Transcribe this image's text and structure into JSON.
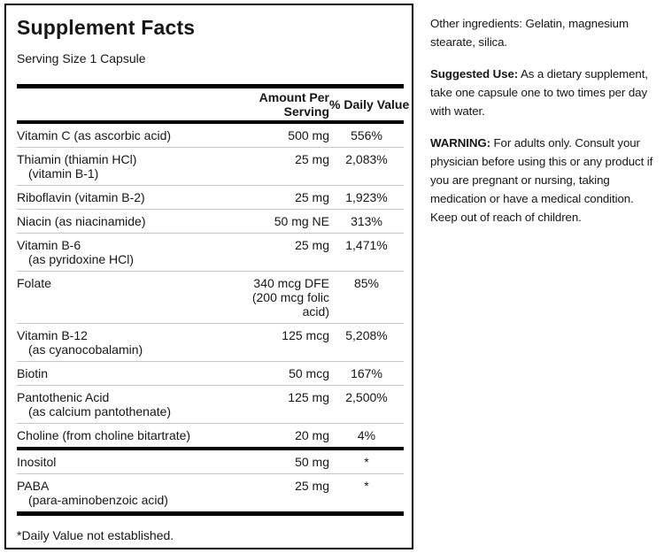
{
  "label": {
    "title": "Supplement Facts",
    "serving_size": "Serving Size 1 Capsule",
    "header": {
      "amount": "Amount Per\nServing",
      "daily_value": "% Daily Value"
    },
    "rows": [
      {
        "name": "Vitamin C (as ascorbic acid)",
        "amount": "500 mg",
        "dv": "556%"
      },
      {
        "name": "Thiamin (thiamin HCl)",
        "name2": "(vitamin B-1)",
        "amount": "25 mg",
        "dv": "2,083%"
      },
      {
        "name": "Riboflavin (vitamin B-2)",
        "amount": "25 mg",
        "dv": "1,923%"
      },
      {
        "name": "Niacin (as niacinamide)",
        "amount": "50 mg NE",
        "dv": "313%"
      },
      {
        "name": "Vitamin B-6",
        "name2": "(as pyridoxine HCl)",
        "amount": "25 mg",
        "dv": "1,471%"
      },
      {
        "name": "Folate",
        "amount": "340 mcg DFE\n(200 mcg folic\nacid)",
        "dv": "85%"
      },
      {
        "name": "Vitamin B-12",
        "name2": "(as cyanocobalamin)",
        "amount": "125 mcg",
        "dv": "5,208%"
      },
      {
        "name": "Biotin",
        "amount": "50 mcg",
        "dv": "167%"
      },
      {
        "name": "Pantothenic Acid",
        "name2": "(as calcium pantothenate)",
        "amount": "125 mg",
        "dv": "2,500%"
      },
      {
        "name": "Choline (from choline bitartrate)",
        "amount": "20 mg",
        "dv": "4%"
      }
    ],
    "rows_no_dv": [
      {
        "name": "Inositol",
        "amount": "50 mg",
        "dv": "*"
      },
      {
        "name": "PABA",
        "name2": "(para-aminobenzoic acid)",
        "amount": "25 mg",
        "dv": "*"
      }
    ],
    "footnote": "*Daily Value not established."
  },
  "right_column": {
    "other_ingredients": {
      "text": "Other ingredients: Gelatin, magnesium\nstearate, silica."
    },
    "suggested_use": {
      "label": "Suggested Use:",
      "text": " As a dietary supplement,\ntake one capsule one to two times per day\nwith water."
    },
    "warning": {
      "label": "WARNING:",
      "text": " For adults only. Consult your\nphysician before using this or any product if\nyou are pregnant or nursing, taking\nmedication or have a medical condition.\nKeep out of reach of children."
    }
  },
  "colors": {
    "text": "#161616",
    "border": "#000000",
    "row_divider": "#c7c7c7"
  }
}
